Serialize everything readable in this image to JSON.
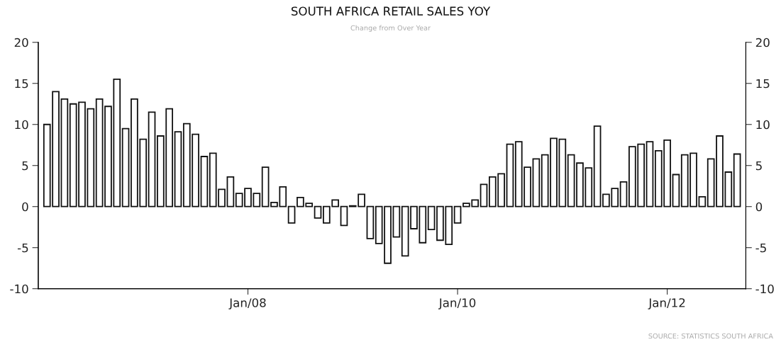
{
  "chart_data": {
    "type": "bar",
    "title": "SOUTH AFRICA RETAIL SALES YOY",
    "subtitle": "Change from Over Year",
    "annotations": [
      "SOURCE: STATISTICS SOUTH AFRICA"
    ],
    "x": [
      "2006-02",
      "2006-03",
      "2006-04",
      "2006-05",
      "2006-06",
      "2006-07",
      "2006-08",
      "2006-09",
      "2006-10",
      "2006-11",
      "2006-12",
      "2007-01",
      "2007-02",
      "2007-03",
      "2007-04",
      "2007-05",
      "2007-06",
      "2007-07",
      "2007-08",
      "2007-09",
      "2007-10",
      "2007-11",
      "2007-12",
      "2008-01",
      "2008-02",
      "2008-03",
      "2008-04",
      "2008-05",
      "2008-06",
      "2008-07",
      "2008-08",
      "2008-09",
      "2008-10",
      "2008-11",
      "2008-12",
      "2009-01",
      "2009-02",
      "2009-03",
      "2009-04",
      "2009-05",
      "2009-06",
      "2009-07",
      "2009-08",
      "2009-09",
      "2009-10",
      "2009-11",
      "2009-12",
      "2010-01",
      "2010-02",
      "2010-03",
      "2010-04",
      "2010-05",
      "2010-06",
      "2010-07",
      "2010-08",
      "2010-09",
      "2010-10",
      "2010-11",
      "2010-12",
      "2011-01",
      "2011-02",
      "2011-03",
      "2011-04",
      "2011-05",
      "2011-06",
      "2011-07",
      "2011-08",
      "2011-09",
      "2011-10",
      "2011-11",
      "2011-12",
      "2012-01",
      "2012-02",
      "2012-03",
      "2012-04",
      "2012-05",
      "2012-06",
      "2012-07",
      "2012-08",
      "2012-09"
    ],
    "values": [
      10.0,
      14.0,
      13.1,
      12.5,
      12.7,
      11.9,
      13.1,
      12.2,
      15.5,
      9.5,
      13.1,
      8.2,
      11.5,
      8.6,
      11.9,
      9.1,
      10.1,
      8.8,
      6.1,
      6.5,
      2.1,
      3.6,
      1.6,
      2.2,
      1.6,
      4.8,
      0.5,
      2.4,
      -2.0,
      1.1,
      0.4,
      -1.4,
      -2.0,
      0.8,
      -2.3,
      0.1,
      1.5,
      -3.9,
      -4.5,
      -6.9,
      -3.7,
      -6.0,
      -2.7,
      -4.4,
      -2.8,
      -4.1,
      -4.6,
      -2.0,
      0.4,
      0.8,
      2.7,
      3.6,
      4.0,
      7.6,
      7.9,
      4.8,
      5.8,
      6.3,
      8.3,
      8.2,
      6.3,
      5.3,
      4.7,
      9.8,
      1.5,
      2.2,
      3.0,
      7.3,
      7.6,
      7.9,
      6.8,
      8.1,
      3.9,
      6.3,
      6.5,
      1.2,
      5.8,
      8.6,
      4.2,
      6.4
    ],
    "color": "#ffffff",
    "xlim": [
      "2006-01",
      "2012-10"
    ],
    "xticks": [
      {
        "value": "2008-01",
        "label": "Jan/08"
      },
      {
        "value": "2010-01",
        "label": "Jan/10"
      },
      {
        "value": "2012-01",
        "label": "Jan/12"
      }
    ],
    "ylim": [
      -10,
      20
    ],
    "yticks": [
      -10,
      -5,
      0,
      5,
      10,
      15,
      20
    ],
    "y2lim": [
      -10,
      20
    ],
    "y2ticks": [
      -10,
      -5,
      0,
      5,
      10,
      15,
      20
    ],
    "grid": false,
    "legend": false
  }
}
